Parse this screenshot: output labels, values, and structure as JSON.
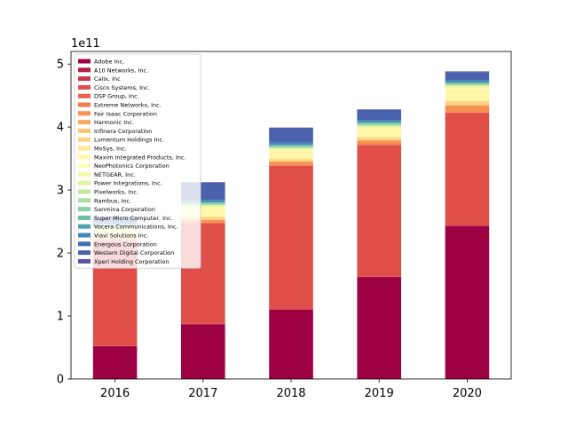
{
  "chart_data": {
    "type": "bar",
    "stacked": true,
    "categories": [
      "2016",
      "2017",
      "2018",
      "2019",
      "2020"
    ],
    "offset_label": "1e11",
    "y_scale": 100000000000,
    "ylim": [
      0,
      5.2
    ],
    "yticks": [
      0,
      1,
      2,
      3,
      4,
      5
    ],
    "ytick_labels": [
      "0",
      "1",
      "2",
      "3",
      "4",
      "5"
    ],
    "legend_location": "upper-left",
    "grid": false,
    "series": [
      {
        "name": "Adobe Inc.",
        "color": "#9e0142",
        "values": [
          0.52,
          0.87,
          1.1,
          1.62,
          2.43
        ]
      },
      {
        "name": "A10 Networks, Inc.",
        "color": "#b51f48",
        "values": [
          0.003,
          0.003,
          0.003,
          0.003,
          0.003
        ]
      },
      {
        "name": "Calix, Inc",
        "color": "#c9364b",
        "values": [
          0.003,
          0.003,
          0.003,
          0.003,
          0.004
        ]
      },
      {
        "name": "Cisco Systems, Inc.",
        "color": "#e04e4a",
        "values": [
          1.66,
          1.6,
          2.28,
          2.09,
          1.79
        ]
      },
      {
        "name": "DSP Group, Inc.",
        "color": "#e8604d",
        "values": [
          0.002,
          0.002,
          0.002,
          0.002,
          0.002
        ]
      },
      {
        "name": "Extreme Networks, Inc.",
        "color": "#f17b4a",
        "values": [
          0.003,
          0.003,
          0.01,
          0.01,
          0.01
        ]
      },
      {
        "name": "Fair Isaac Corporation",
        "color": "#f79150",
        "values": [
          0.03,
          0.04,
          0.05,
          0.06,
          0.1
        ]
      },
      {
        "name": "Harmonic Inc.",
        "color": "#fba95e",
        "values": [
          0.005,
          0.005,
          0.005,
          0.005,
          0.007
        ]
      },
      {
        "name": "Infinera Corporation",
        "color": "#fdc271",
        "values": [
          0.01,
          0.01,
          0.01,
          0.01,
          0.01
        ]
      },
      {
        "name": "Lumentum Holdings Inc.",
        "color": "#fed683",
        "values": [
          0.03,
          0.04,
          0.03,
          0.04,
          0.06
        ]
      },
      {
        "name": "MoSys, Inc.",
        "color": "#fee796",
        "values": [
          0.001,
          0.001,
          0.001,
          0.001,
          0.001
        ]
      },
      {
        "name": "Maxim Integrated Products, Inc.",
        "color": "#fff6a8",
        "values": [
          0.11,
          0.14,
          0.13,
          0.14,
          0.2
        ]
      },
      {
        "name": "NeoPhotonics Corporation",
        "color": "#fbfdb9",
        "values": [
          0.005,
          0.003,
          0.003,
          0.004,
          0.005
        ]
      },
      {
        "name": "NETGEAR, Inc.",
        "color": "#f1f9aa",
        "values": [
          0.01,
          0.02,
          0.02,
          0.01,
          0.01
        ]
      },
      {
        "name": "Power Integrations, Inc.",
        "color": "#e2f397",
        "values": [
          0.02,
          0.02,
          0.02,
          0.02,
          0.03
        ]
      },
      {
        "name": "Pixelworks, Inc.",
        "color": "#c7e89e",
        "values": [
          0.001,
          0.001,
          0.002,
          0.001,
          0.001
        ]
      },
      {
        "name": "Rambus, Inc.",
        "color": "#abdda4",
        "values": [
          0.01,
          0.01,
          0.01,
          0.02,
          0.01
        ]
      },
      {
        "name": "Sanmina Corporation",
        "color": "#89d0a4",
        "values": [
          0.02,
          0.02,
          0.02,
          0.02,
          0.02
        ]
      },
      {
        "name": "Super Micro Computer, Inc.",
        "color": "#68c2a4",
        "values": [
          0.01,
          0.01,
          0.01,
          0.01,
          0.01
        ]
      },
      {
        "name": "Vocera Communications, Inc.",
        "color": "#4fa5b0",
        "values": [
          0.01,
          0.01,
          0.01,
          0.01,
          0.01
        ]
      },
      {
        "name": "Viavi Solutions Inc.",
        "color": "#3f8ab8",
        "values": [
          0.02,
          0.03,
          0.03,
          0.03,
          0.03
        ]
      },
      {
        "name": "Energous Corporation",
        "color": "#3e6eb3",
        "values": [
          0.005,
          0.004,
          0.003,
          0.001,
          0.001
        ]
      },
      {
        "name": "Western Digital Corporation",
        "color": "#4a61ab",
        "values": [
          0.08,
          0.27,
          0.23,
          0.16,
          0.13
        ]
      },
      {
        "name": "Xperi Holding Corporation",
        "color": "#5e4fa2",
        "values": [
          0.01,
          0.01,
          0.01,
          0.01,
          0.01
        ]
      }
    ]
  }
}
